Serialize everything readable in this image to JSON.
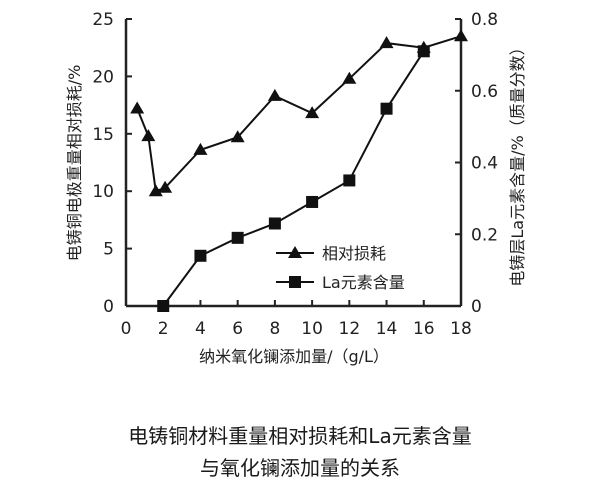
{
  "chart_data": {
    "type": "line",
    "title": "",
    "xlabel": "纳米氧化镧添加量/（g/L）",
    "ylabel_left": "电铸铜电极重量相对损耗/%",
    "ylabel_right": "电铸层La元素含量/%（质量分数）",
    "xlim": [
      0,
      18
    ],
    "ylim_left": [
      0,
      25
    ],
    "ylim_right": [
      0,
      0.8
    ],
    "x_ticks": [
      "0",
      "2",
      "4",
      "6",
      "8",
      "10",
      "12",
      "14",
      "16",
      "18"
    ],
    "y_left_ticks": [
      "0",
      "5",
      "10",
      "15",
      "20",
      "25"
    ],
    "y_right_ticks": [
      "0",
      "0.2",
      "0.4",
      "0.6",
      "0.8"
    ],
    "legend_position": "bottom-right",
    "series": [
      {
        "name": "相对损耗",
        "axis": "left",
        "marker": "triangle",
        "x": [
          0.6,
          1.2,
          1.6,
          2.1,
          4,
          6,
          8,
          10,
          12,
          14,
          16,
          18
        ],
        "y": [
          17.2,
          14.8,
          10.0,
          10.3,
          13.6,
          14.7,
          18.3,
          16.8,
          19.8,
          22.9,
          22.5,
          23.5
        ]
      },
      {
        "name": "La元素含量",
        "axis": "right",
        "marker": "square",
        "x": [
          2,
          4,
          6,
          8,
          10,
          12,
          14,
          16
        ],
        "y": [
          0,
          0.14,
          0.19,
          0.23,
          0.29,
          0.35,
          0.55,
          0.71
        ]
      }
    ]
  },
  "caption": {
    "line1": "电铸铜材料重量相对损耗和La元素含量",
    "line2": "与氧化镧添加量的关系"
  }
}
